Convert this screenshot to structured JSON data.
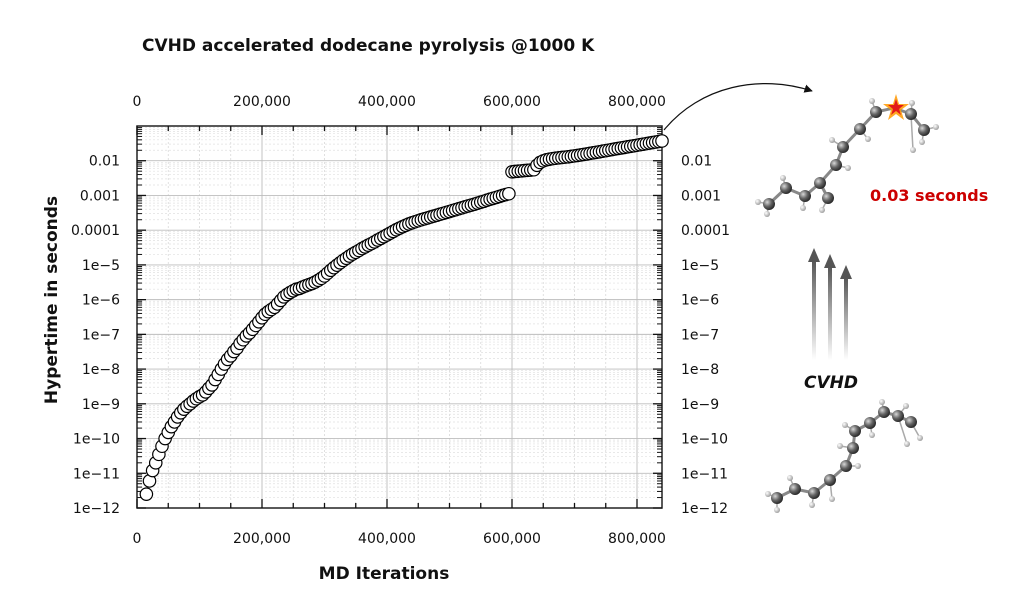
{
  "chart_data": {
    "type": "scatter",
    "title": "CVHD accelerated dodecane pyrolysis @1000 K",
    "xlabel": "MD Iterations",
    "ylabel": "Hypertime in seconds",
    "xlim": [
      0,
      840000
    ],
    "ylim": [
      1e-12,
      0.1
    ],
    "yscale": "log",
    "grid": true,
    "x_ticks": [
      0,
      200000,
      400000,
      600000,
      800000
    ],
    "x_tick_labels": [
      "0",
      "200,000",
      "400,000",
      "600,000",
      "800,000"
    ],
    "y_ticks": [
      1e-12,
      1e-11,
      1e-10,
      1e-09,
      1e-08,
      1e-07,
      1e-06,
      1e-05,
      0.0001,
      0.001,
      0.01
    ],
    "y_tick_labels": [
      "1e−12",
      "1e−11",
      "1e−10",
      "1e−9",
      "1e−8",
      "1e−7",
      "1e−6",
      "1e−5",
      "0.0001",
      "0.001",
      "0.01"
    ],
    "series": [
      {
        "marker": "open-circle",
        "color": "#000000",
        "x": [
          15000,
          20000,
          25000,
          30000,
          35000,
          40000,
          45000,
          50000,
          55000,
          60000,
          65000,
          70000,
          75000,
          80000,
          85000,
          90000,
          95000,
          100000,
          105000,
          110000,
          115000,
          120000,
          125000,
          130000,
          135000,
          140000,
          145000,
          150000,
          155000,
          160000,
          165000,
          170000,
          175000,
          180000,
          185000,
          190000,
          195000,
          200000,
          205000,
          210000,
          215000,
          220000,
          225000,
          230000,
          235000,
          240000,
          245000,
          250000,
          255000,
          260000,
          265000,
          270000,
          275000,
          280000,
          285000,
          290000,
          295000,
          300000,
          305000,
          310000,
          315000,
          320000,
          325000,
          330000,
          335000,
          340000,
          345000,
          350000,
          355000,
          360000,
          365000,
          370000,
          375000,
          380000,
          385000,
          390000,
          395000,
          400000,
          405000,
          410000,
          415000,
          420000,
          425000,
          430000,
          435000,
          440000,
          445000,
          450000,
          455000,
          460000,
          465000,
          470000,
          475000,
          480000,
          485000,
          490000,
          495000,
          500000,
          505000,
          510000,
          515000,
          520000,
          525000,
          530000,
          535000,
          540000,
          545000,
          550000,
          555000,
          560000,
          565000,
          570000,
          575000,
          580000,
          585000,
          590000,
          595000,
          600000,
          605000,
          610000,
          615000,
          620000,
          625000,
          630000,
          635000,
          640000,
          645000,
          650000,
          655000,
          660000,
          665000,
          670000,
          675000,
          680000,
          685000,
          690000,
          695000,
          700000,
          705000,
          710000,
          715000,
          720000,
          725000,
          730000,
          735000,
          740000,
          745000,
          750000,
          755000,
          760000,
          765000,
          770000,
          775000,
          780000,
          785000,
          790000,
          795000,
          800000,
          805000,
          810000,
          815000,
          820000,
          825000,
          830000,
          835000,
          840000
        ],
        "y": [
          2.5e-12,
          6e-12,
          1.2e-11,
          2e-11,
          3.5e-11,
          6e-11,
          1e-10,
          1.5e-10,
          2.2e-10,
          3e-10,
          4.2e-10,
          5.5e-10,
          7e-10,
          8.5e-10,
          1e-09,
          1.2e-09,
          1.4e-09,
          1.6e-09,
          1.8e-09,
          2.2e-09,
          2.8e-09,
          3.5e-09,
          5e-09,
          7e-09,
          1e-08,
          1.4e-08,
          1.9e-08,
          2.4e-08,
          3.2e-08,
          4e-08,
          5.5e-08,
          7e-08,
          9e-08,
          1.1e-07,
          1.4e-07,
          1.8e-07,
          2.3e-07,
          3e-07,
          3.8e-07,
          4.5e-07,
          5.2e-07,
          6e-07,
          7.5e-07,
          9.5e-07,
          1.2e-06,
          1.4e-06,
          1.6e-06,
          1.8e-06,
          2e-06,
          2.1e-06,
          2.3e-06,
          2.5e-06,
          2.7e-06,
          2.9e-06,
          3.2e-06,
          3.6e-06,
          4.1e-06,
          4.8e-06,
          5.8e-06,
          7e-06,
          8.3e-06,
          9.8e-06,
          1.15e-05,
          1.35e-05,
          1.55e-05,
          1.8e-05,
          2.05e-05,
          2.3e-05,
          2.6e-05,
          2.95e-05,
          3.3e-05,
          3.7e-05,
          4.1e-05,
          4.6e-05,
          5.2e-05,
          5.8e-05,
          6.5e-05,
          7.3e-05,
          8.2e-05,
          9.2e-05,
          0.000103,
          0.000114,
          0.000126,
          0.000138,
          0.000151,
          0.000163,
          0.000175,
          0.000187,
          0.0002,
          0.000212,
          0.000225,
          0.00024,
          0.000255,
          0.00027,
          0.000288,
          0.000305,
          0.000325,
          0.000345,
          0.000368,
          0.00039,
          0.000415,
          0.00044,
          0.00047,
          0.0005,
          0.00053,
          0.00056,
          0.0006,
          0.00064,
          0.00068,
          0.00073,
          0.00078,
          0.00083,
          0.00088,
          0.00094,
          0.001,
          0.00106,
          0.00112,
          0.0048,
          0.0049,
          0.005,
          0.0051,
          0.0052,
          0.0053,
          0.0054,
          0.0055,
          0.0074,
          0.0089,
          0.0099,
          0.0106,
          0.0111,
          0.0115,
          0.0118,
          0.0121,
          0.0124,
          0.0127,
          0.013,
          0.0134,
          0.0138,
          0.0142,
          0.0147,
          0.0152,
          0.0157,
          0.0163,
          0.0169,
          0.0175,
          0.0181,
          0.0188,
          0.0195,
          0.0202,
          0.021,
          0.0218,
          0.0226,
          0.0234,
          0.0242,
          0.0251,
          0.026,
          0.0269,
          0.0279,
          0.0289,
          0.03,
          0.0311,
          0.0322,
          0.0334,
          0.0346,
          0.0358,
          0.037
        ]
      }
    ]
  },
  "annotations": {
    "time_label": "0.03 seconds",
    "method_label": "CVHD",
    "time_label_color": "#cc0000",
    "arrow_color": "#555555"
  }
}
